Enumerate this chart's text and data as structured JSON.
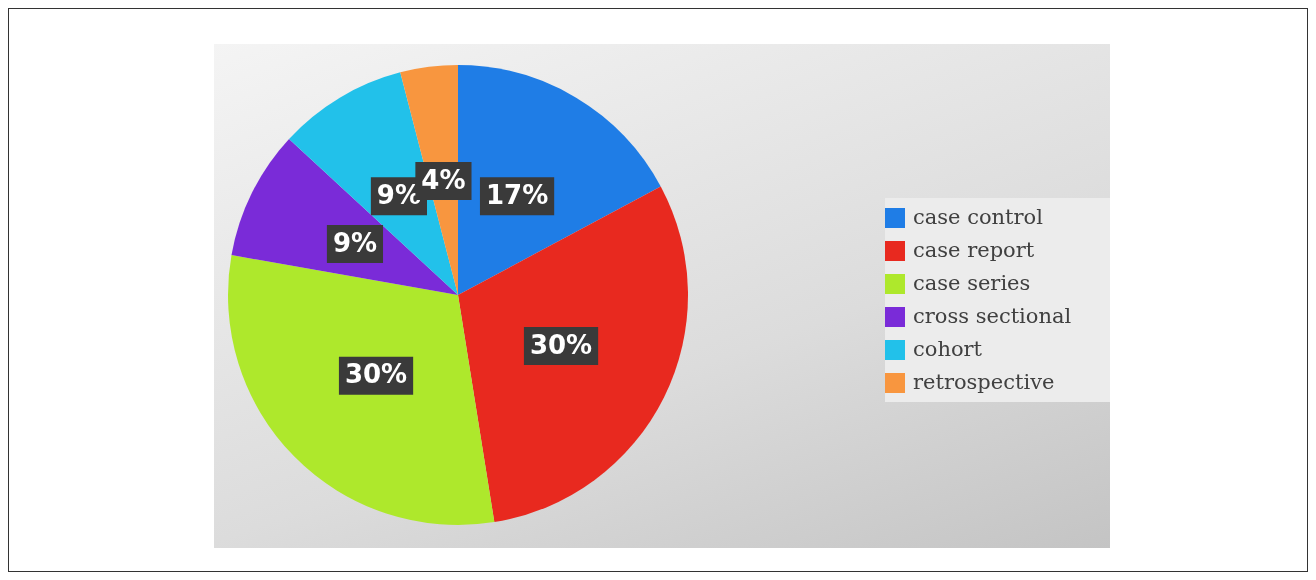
{
  "chart_data": {
    "type": "pie",
    "categories": [
      "case control",
      "case report",
      "case series",
      "cross sectional",
      "cohort",
      "retrospective"
    ],
    "values": [
      17,
      30,
      30,
      9,
      9,
      4
    ],
    "value_labels": [
      "17%",
      "30%",
      "30%",
      "9%",
      "9%",
      "4%"
    ],
    "colors": [
      "#1f7de6",
      "#e8291f",
      "#aee82c",
      "#7a2bd8",
      "#22c1ea",
      "#f8963f"
    ],
    "legend": "right"
  }
}
